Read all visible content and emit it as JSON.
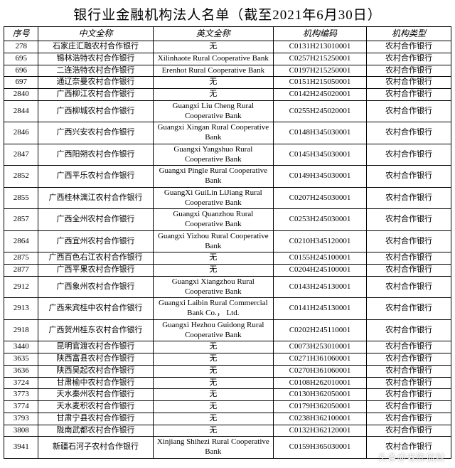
{
  "title": "银行业金融机构法人名单（截至2021年6月30日）",
  "columns": [
    "序号",
    "中文全称",
    "英文全称",
    "机构编码",
    "机构类型"
  ],
  "rows": [
    [
      "278",
      "石家庄汇融农村合作银行",
      "无",
      "C0131H213010001",
      "农村合作银行"
    ],
    [
      "695",
      "锡林浩特农村合作银行",
      "Xilinhaote Rural Cooperative Bank",
      "C0257H215250001",
      "农村合作银行"
    ],
    [
      "696",
      "二连浩特农村合作银行",
      "Erenhot Rural Cooperative Bank",
      "C0197H215250001",
      "农村合作银行"
    ],
    [
      "697",
      "通辽奈曼农村合作银行",
      "无",
      "C0151H215050001",
      "农村合作银行"
    ],
    [
      "2840",
      "广西柳江农村合作银行",
      "无",
      "C0142H245020001",
      "农村合作银行"
    ],
    [
      "2844",
      "广西柳城农村合作银行",
      "Guangxi Liu Cheng Rural Cooperative Bank",
      "C0255H245020001",
      "农村合作银行"
    ],
    [
      "2846",
      "广西兴安农村合作银行",
      "Guangxi Xingan Rural Cooperative Bank",
      "C0148H345030001",
      "农村合作银行"
    ],
    [
      "2847",
      "广西阳朔农村合作银行",
      "Guangxi Yangshuo Rural Cooperative Bank",
      "C0145H345030001",
      "农村合作银行"
    ],
    [
      "2852",
      "广西平乐农村合作银行",
      "Guangxi Pingle Rural Cooperative Bank",
      "C0149H345030001",
      "农村合作银行"
    ],
    [
      "2855",
      "广西桂林漓江农村合作银行",
      "GuangXi GuiLin LiJiang Rural Cooperative Bank",
      "C0207H245030001",
      "农村合作银行"
    ],
    [
      "2857",
      "广西全州农村合作银行",
      "Guangxi Quanzhou Rural Cooperative Bank",
      "C0253H245030001",
      "农村合作银行"
    ],
    [
      "2864",
      "广西宜州农村合作银行",
      "Guangxi Yizhou Rural Cooperative Bank",
      "C0210H345120001",
      "农村合作银行"
    ],
    [
      "2875",
      "广西百色右江农村合作银行",
      "无",
      "C0155H245100001",
      "农村合作银行"
    ],
    [
      "2877",
      "广西平果农村合作银行",
      "无",
      "C0204H245100001",
      "农村合作银行"
    ],
    [
      "2912",
      "广西象州农村合作银行",
      "Guangxi Xiangzhou Rural Cooperative Bank",
      "C0143H245130001",
      "农村合作银行"
    ],
    [
      "2913",
      "广西来宾桂中农村合作银行",
      "Guangxi Laibin Rural Commercial Bank Co.， Ltd.",
      "C0141H245130001",
      "农村合作银行"
    ],
    [
      "2918",
      "广西贺州桂东农村合作银行",
      "Guangxi Hezhou Guidong Rural Cooperative Bank",
      "C0202H245110001",
      "农村合作银行"
    ],
    [
      "3440",
      "昆明官渡农村合作银行",
      "无",
      "C0073H253010001",
      "农村合作银行"
    ],
    [
      "3635",
      "陕西富县农村合作银行",
      "无",
      "C0271H361060001",
      "农村合作银行"
    ],
    [
      "3636",
      "陕西吴起农村合作银行",
      "无",
      "C0270H361060001",
      "农村合作银行"
    ],
    [
      "3724",
      "甘肃榆中农村合作银行",
      "无",
      "C0108H262010001",
      "农村合作银行"
    ],
    [
      "3773",
      "天水秦州农村合作银行",
      "无",
      "C0130H362050001",
      "农村合作银行"
    ],
    [
      "3774",
      "天水麦积农村合作银行",
      "无",
      "C0179H362050001",
      "农村合作银行"
    ],
    [
      "3793",
      "甘肃宁县农村合作银行",
      "无",
      "C0238H362100001",
      "农村合作银行"
    ],
    [
      "3808",
      "陇南武都农村合作银行",
      "无",
      "C0132H362120001",
      "农村合作银行"
    ],
    [
      "3941",
      "新疆石河子农村合作银行",
      "Xinjiang Shihezi Rural Cooperative Bank",
      "C0159H365030001",
      "农村合作银行"
    ]
  ],
  "watermark": "头条＠老陈侃财"
}
